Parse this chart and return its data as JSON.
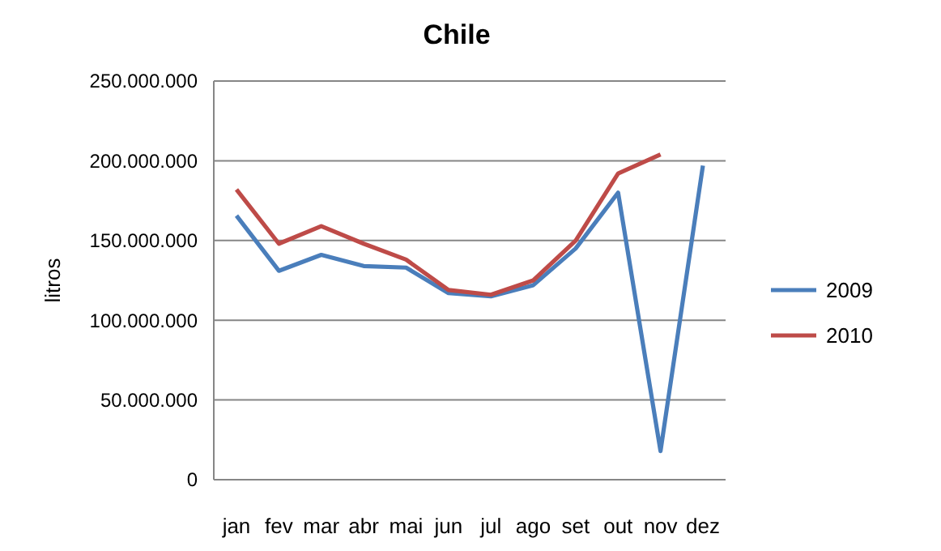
{
  "chart_data": {
    "type": "line",
    "title": "Chile",
    "ylabel": "litros",
    "categories": [
      "jan",
      "fev",
      "mar",
      "abr",
      "mai",
      "jun",
      "jul",
      "ago",
      "set",
      "out",
      "nov",
      "dez"
    ],
    "series": [
      {
        "name": "2009",
        "color": "#4a7ebb",
        "values": [
          165600000,
          131000000,
          141000000,
          134000000,
          133000000,
          117000000,
          115000000,
          122000000,
          145000000,
          180000000,
          18000000,
          197000000
        ]
      },
      {
        "name": "2010",
        "color": "#be4b48",
        "values": [
          182000000,
          148000000,
          159000000,
          148000000,
          138000000,
          119000000,
          116000000,
          125000000,
          150000000,
          192000000,
          204000000,
          null
        ]
      }
    ],
    "ylim": [
      0,
      250000000
    ],
    "yticks": [
      {
        "value": 0,
        "label": "0"
      },
      {
        "value": 50000000,
        "label": "50.000.000"
      },
      {
        "value": 100000000,
        "label": "100.000.000"
      },
      {
        "value": 150000000,
        "label": "150.000.000"
      },
      {
        "value": 200000000,
        "label": "200.000.000"
      },
      {
        "value": 250000000,
        "label": "250.000.000"
      }
    ],
    "grid": "y",
    "legend": "right",
    "marker": "none",
    "line_style": "solid"
  }
}
